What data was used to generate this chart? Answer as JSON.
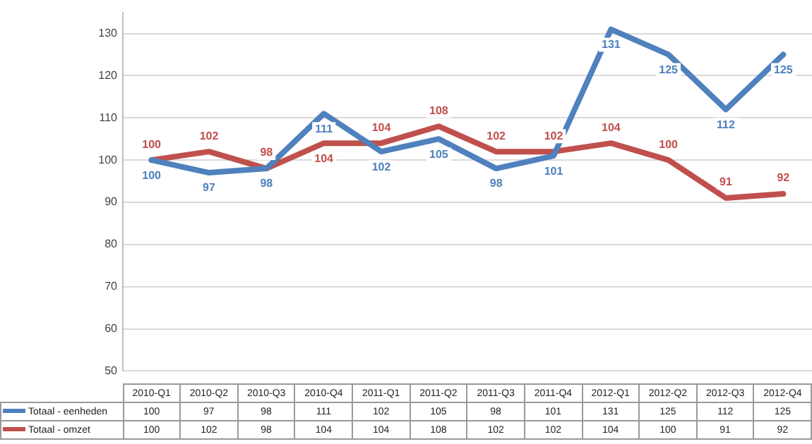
{
  "chart_data": {
    "type": "line",
    "categories": [
      "2010-Q1",
      "2010-Q2",
      "2010-Q3",
      "2010-Q4",
      "2011-Q1",
      "2011-Q2",
      "2011-Q3",
      "2011-Q4",
      "2012-Q1",
      "2012-Q2",
      "2012-Q3",
      "2012-Q4"
    ],
    "series": [
      {
        "name": "Totaal - eenheden",
        "color": "#4f81bd",
        "values": [
          100,
          97,
          98,
          111,
          102,
          105,
          98,
          101,
          131,
          125,
          112,
          125
        ],
        "value_labels": [
          "100",
          "97",
          "98",
          "111",
          "102",
          "105",
          "98",
          "101",
          "131",
          "125",
          "112",
          "125"
        ]
      },
      {
        "name": "Totaal - omzet",
        "color": "#c0504d",
        "values": [
          100,
          102,
          98,
          104,
          104,
          108,
          102,
          102,
          104,
          100,
          91,
          92
        ],
        "value_labels": [
          "100",
          "102",
          "98",
          "104",
          "104",
          "108",
          "102",
          "102",
          "104",
          "100",
          "91",
          "92"
        ]
      }
    ],
    "ylim": [
      50,
      135
    ],
    "yticks": [
      50,
      60,
      70,
      80,
      90,
      100,
      110,
      120,
      130
    ],
    "grid": "y",
    "legend": "bottom",
    "data_labels": true,
    "marker": "none",
    "line_style": "solid"
  }
}
